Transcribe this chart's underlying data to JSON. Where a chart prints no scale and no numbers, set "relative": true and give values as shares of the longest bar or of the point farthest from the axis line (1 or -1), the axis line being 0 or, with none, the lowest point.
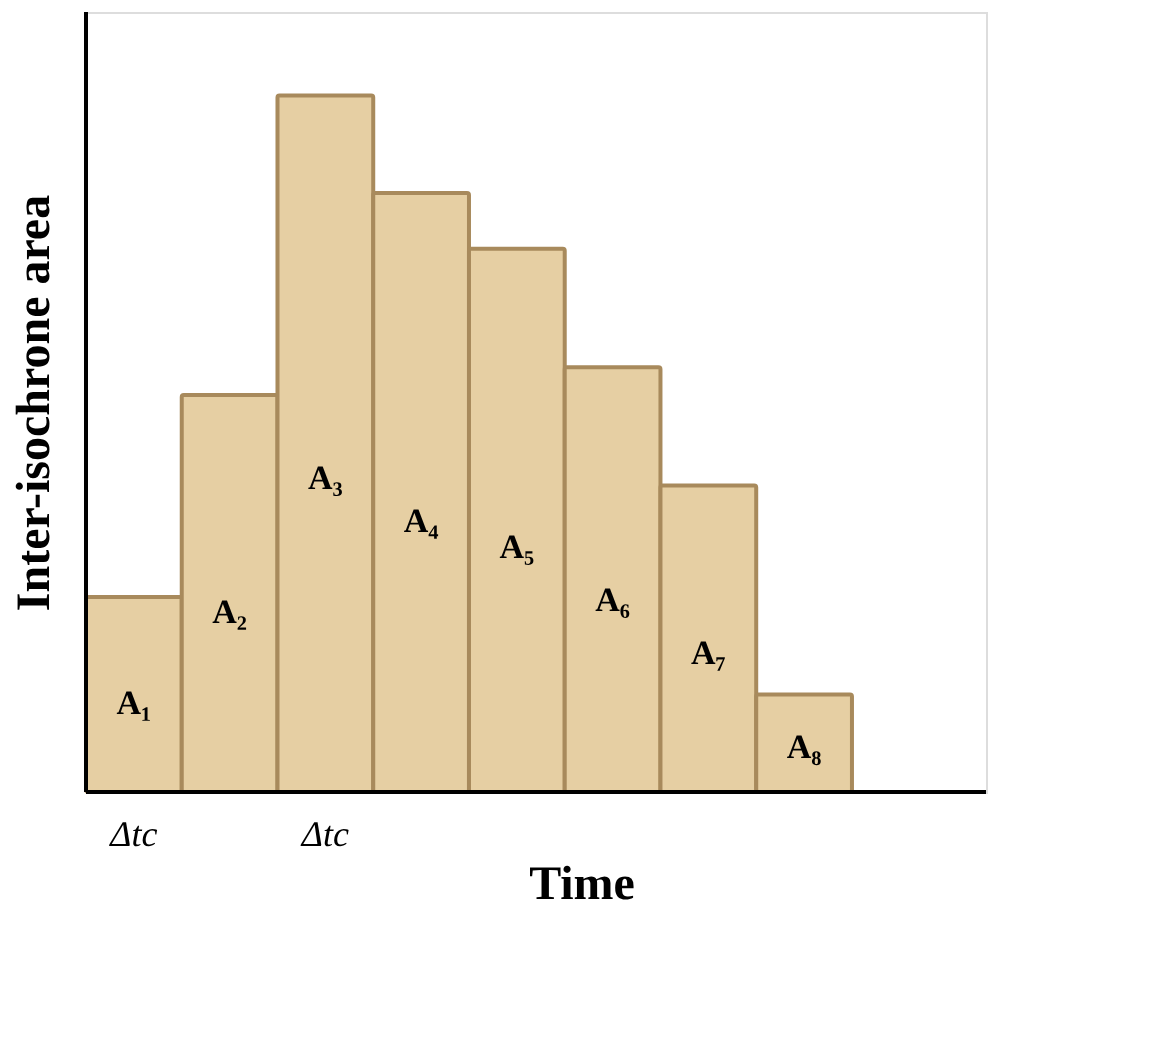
{
  "chart_data": {
    "type": "bar",
    "relative": true,
    "xlabel": "Time",
    "ylabel": "Inter-isochrone area",
    "categories": [
      "A₁",
      "A₂",
      "A₃",
      "A₄",
      "A₅",
      "A₆",
      "A₇",
      "A₈"
    ],
    "values": [
      0.28,
      0.57,
      1,
      0.86,
      0.78,
      0.61,
      0.44,
      0.14
    ],
    "color": "#e6cfa3",
    "grid": false,
    "annotations": [
      "Δtc",
      "Δtc"
    ]
  }
}
